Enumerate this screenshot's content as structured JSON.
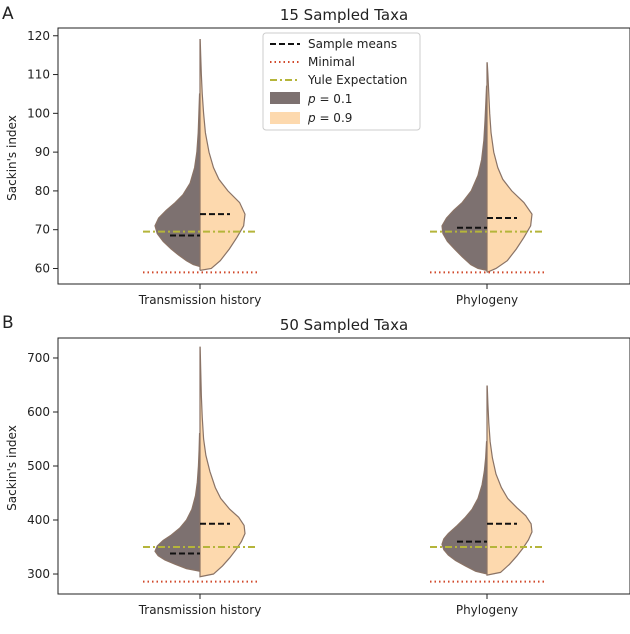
{
  "chart_data": [
    {
      "type": "violin",
      "panel_label": "A",
      "title": "15 Sampled Taxa",
      "ylabel": "Sackin's index",
      "xlabel": "",
      "ylim": [
        56,
        122
      ],
      "yticks": [
        60,
        70,
        80,
        90,
        100,
        110,
        120
      ],
      "categories": [
        "Transmission history",
        "Phylogeny"
      ],
      "legend": {
        "position": "upper-center",
        "entries": [
          {
            "label": "Sample means",
            "kind": "line",
            "style": "dashed",
            "color": "#111111"
          },
          {
            "label": "Minimal",
            "kind": "line",
            "style": "dotted",
            "color": "#d1492b"
          },
          {
            "label": "Yule Expectation",
            "kind": "line",
            "style": "dashdot",
            "color": "#b5b53a"
          },
          {
            "label_italic": "p",
            "label_rest": " = 0.1",
            "kind": "patch",
            "color": "#7d7170"
          },
          {
            "label_italic": "p",
            "label_rest": " = 0.9",
            "kind": "patch",
            "color": "#fdd9ae"
          }
        ]
      },
      "minimal": 59,
      "yule": 69.5,
      "series": [
        {
          "name": "p = 0.1",
          "side": "left",
          "color": "#7d7170",
          "means": [
            68.5,
            70.5
          ],
          "profiles": [
            [
              [
                60.5,
                0
              ],
              [
                61,
                0.15
              ],
              [
                62,
                0.3
              ],
              [
                63.5,
                0.48
              ],
              [
                65,
                0.64
              ],
              [
                67,
                0.82
              ],
              [
                69,
                0.95
              ],
              [
                71,
                1.0
              ],
              [
                73,
                0.92
              ],
              [
                75,
                0.75
              ],
              [
                77,
                0.55
              ],
              [
                79,
                0.38
              ],
              [
                82,
                0.22
              ],
              [
                86,
                0.12
              ],
              [
                90,
                0.07
              ],
              [
                95,
                0.04
              ],
              [
                100,
                0.025
              ],
              [
                105,
                0.01
              ]
            ],
            [
              [
                59.5,
                0
              ],
              [
                60,
                0.2
              ],
              [
                61,
                0.36
              ],
              [
                63,
                0.55
              ],
              [
                65,
                0.72
              ],
              [
                67,
                0.88
              ],
              [
                69,
                0.98
              ],
              [
                71,
                1.0
              ],
              [
                73,
                0.9
              ],
              [
                75,
                0.74
              ],
              [
                77,
                0.55
              ],
              [
                80,
                0.35
              ],
              [
                84,
                0.2
              ],
              [
                88,
                0.12
              ],
              [
                93,
                0.07
              ],
              [
                98,
                0.045
              ],
              [
                103,
                0.025
              ],
              [
                107,
                0.01
              ]
            ]
          ]
        },
        {
          "name": "p = 0.9",
          "side": "right",
          "color": "#fdd9ae",
          "means": [
            74,
            73
          ],
          "profiles": [
            [
              [
                59.5,
                0
              ],
              [
                60,
                0.25
              ],
              [
                62,
                0.45
              ],
              [
                65,
                0.65
              ],
              [
                68,
                0.82
              ],
              [
                71,
                0.97
              ],
              [
                74,
                1.0
              ],
              [
                77,
                0.88
              ],
              [
                80,
                0.62
              ],
              [
                83,
                0.42
              ],
              [
                86,
                0.3
              ],
              [
                90,
                0.2
              ],
              [
                95,
                0.12
              ],
              [
                100,
                0.08
              ],
              [
                105,
                0.05
              ],
              [
                110,
                0.03
              ],
              [
                115,
                0.015
              ],
              [
                119,
                0.005
              ]
            ],
            [
              [
                59,
                0
              ],
              [
                60,
                0.2
              ],
              [
                62,
                0.45
              ],
              [
                65,
                0.65
              ],
              [
                68,
                0.82
              ],
              [
                71,
                0.97
              ],
              [
                74,
                1.0
              ],
              [
                77,
                0.82
              ],
              [
                80,
                0.55
              ],
              [
                83,
                0.35
              ],
              [
                86,
                0.24
              ],
              [
                90,
                0.15
              ],
              [
                95,
                0.09
              ],
              [
                100,
                0.06
              ],
              [
                105,
                0.04
              ],
              [
                110,
                0.02
              ],
              [
                113,
                0.005
              ]
            ]
          ]
        }
      ]
    },
    {
      "type": "violin",
      "panel_label": "B",
      "title": "50 Sampled Taxa",
      "ylabel": "Sackin's index",
      "xlabel": "",
      "ylim": [
        263,
        737
      ],
      "yticks": [
        300,
        400,
        500,
        600,
        700
      ],
      "categories": [
        "Transmission history",
        "Phylogeny"
      ],
      "minimal": 286,
      "yule": 350,
      "series": [
        {
          "name": "p = 0.1",
          "side": "left",
          "color": "#7d7170",
          "means": [
            338,
            360
          ],
          "profiles": [
            [
              [
                305,
                0
              ],
              [
                310,
                0.3
              ],
              [
                318,
                0.55
              ],
              [
                326,
                0.78
              ],
              [
                334,
                0.93
              ],
              [
                342,
                1.0
              ],
              [
                352,
                0.95
              ],
              [
                362,
                0.82
              ],
              [
                372,
                0.64
              ],
              [
                385,
                0.45
              ],
              [
                400,
                0.3
              ],
              [
                420,
                0.18
              ],
              [
                445,
                0.1
              ],
              [
                470,
                0.06
              ],
              [
                500,
                0.035
              ],
              [
                530,
                0.02
              ],
              [
                560,
                0.01
              ]
            ],
            [
              [
                300,
                0
              ],
              [
                305,
                0.25
              ],
              [
                315,
                0.48
              ],
              [
                325,
                0.7
              ],
              [
                335,
                0.86
              ],
              [
                345,
                0.96
              ],
              [
                355,
                1.0
              ],
              [
                365,
                0.96
              ],
              [
                375,
                0.86
              ],
              [
                390,
                0.66
              ],
              [
                405,
                0.48
              ],
              [
                420,
                0.33
              ],
              [
                440,
                0.2
              ],
              [
                465,
                0.11
              ],
              [
                490,
                0.06
              ],
              [
                515,
                0.03
              ],
              [
                545,
                0.01
              ]
            ]
          ]
        },
        {
          "name": "p = 0.9",
          "side": "right",
          "color": "#fdd9ae",
          "means": [
            393,
            393
          ],
          "profiles": [
            [
              [
                295,
                0
              ],
              [
                300,
                0.3
              ],
              [
                315,
                0.5
              ],
              [
                330,
                0.66
              ],
              [
                345,
                0.8
              ],
              [
                360,
                0.92
              ],
              [
                375,
                1.0
              ],
              [
                390,
                0.98
              ],
              [
                405,
                0.86
              ],
              [
                420,
                0.66
              ],
              [
                440,
                0.46
              ],
              [
                460,
                0.34
              ],
              [
                490,
                0.22
              ],
              [
                520,
                0.13
              ],
              [
                550,
                0.08
              ],
              [
                590,
                0.05
              ],
              [
                630,
                0.03
              ],
              [
                680,
                0.015
              ],
              [
                720,
                0.004
              ]
            ],
            [
              [
                298,
                0
              ],
              [
                303,
                0.3
              ],
              [
                318,
                0.5
              ],
              [
                333,
                0.66
              ],
              [
                348,
                0.8
              ],
              [
                363,
                0.92
              ],
              [
                378,
                1.0
              ],
              [
                393,
                0.98
              ],
              [
                408,
                0.86
              ],
              [
                423,
                0.66
              ],
              [
                440,
                0.46
              ],
              [
                460,
                0.32
              ],
              [
                485,
                0.2
              ],
              [
                515,
                0.12
              ],
              [
                545,
                0.07
              ],
              [
                580,
                0.04
              ],
              [
                615,
                0.02
              ],
              [
                648,
                0.005
              ]
            ]
          ]
        }
      ]
    }
  ]
}
